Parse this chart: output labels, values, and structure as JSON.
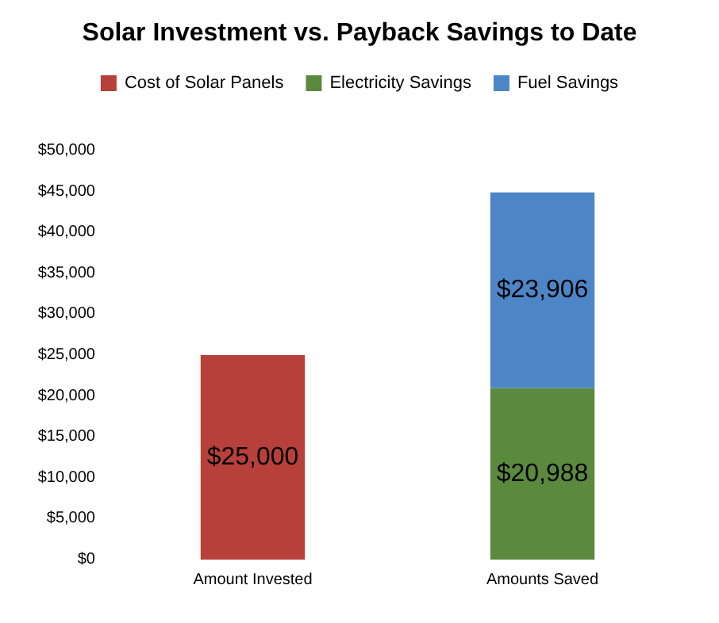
{
  "chart_data": {
    "type": "bar",
    "title": "Solar Investment vs. Payback Savings to Date",
    "categories": [
      "Amount Invested",
      "Amounts Saved"
    ],
    "stacked": true,
    "series": [
      {
        "name": "Cost of Solar Panels",
        "color": "#b8403a",
        "values": [
          25000,
          null
        ],
        "value_labels": [
          "$25,000",
          null
        ]
      },
      {
        "name": "Electricity Savings",
        "color": "#5b8a3e",
        "values": [
          null,
          20988
        ],
        "value_labels": [
          null,
          "$20,988"
        ]
      },
      {
        "name": "Fuel Savings",
        "color": "#4d86c6",
        "values": [
          null,
          23906
        ],
        "value_labels": [
          null,
          "$23,906"
        ]
      }
    ],
    "ylim": [
      0,
      50000
    ],
    "yticks": [
      {
        "value": 0,
        "label": "$0"
      },
      {
        "value": 5000,
        "label": "$5,000"
      },
      {
        "value": 10000,
        "label": "$10,000"
      },
      {
        "value": 15000,
        "label": "$15,000"
      },
      {
        "value": 20000,
        "label": "$20,000"
      },
      {
        "value": 25000,
        "label": "$25,000"
      },
      {
        "value": 30000,
        "label": "$30,000"
      },
      {
        "value": 35000,
        "label": "$35,000"
      },
      {
        "value": 40000,
        "label": "$40,000"
      },
      {
        "value": 45000,
        "label": "$45,000"
      },
      {
        "value": 50000,
        "label": "$50,000"
      }
    ],
    "grid": false,
    "legend": "top"
  }
}
